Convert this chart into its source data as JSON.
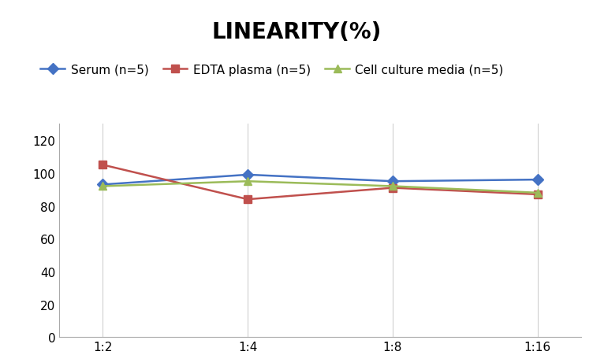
{
  "title": "LINEARITY(%)",
  "x_labels": [
    "1:2",
    "1:4",
    "1:8",
    "1:16"
  ],
  "series": [
    {
      "name": "Serum (n=5)",
      "values": [
        93,
        99,
        95,
        96
      ],
      "color": "#4472C4",
      "marker": "D"
    },
    {
      "name": "EDTA plasma (n=5)",
      "values": [
        105,
        84,
        91,
        87
      ],
      "color": "#C0504D",
      "marker": "s"
    },
    {
      "name": "Cell culture media (n=5)",
      "values": [
        92,
        95,
        92,
        88
      ],
      "color": "#9BBB59",
      "marker": "^"
    }
  ],
  "ylim": [
    0,
    130
  ],
  "yticks": [
    0,
    20,
    40,
    60,
    80,
    100,
    120
  ],
  "title_fontsize": 20,
  "legend_fontsize": 11,
  "tick_fontsize": 11,
  "background_color": "#ffffff",
  "grid_color": "#d0d0d0"
}
